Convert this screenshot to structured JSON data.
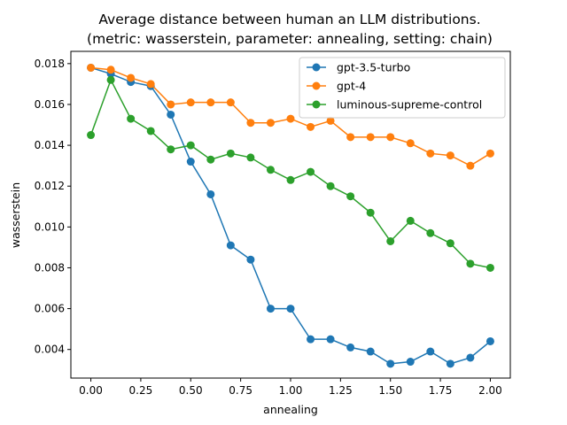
{
  "chart_data": {
    "type": "line",
    "title": "Average distance between human an LLM distributions.",
    "subtitle": "(metric: wasserstein, parameter: annealing, setting: chain)",
    "xlabel": "annealing",
    "ylabel": "wasserstein",
    "xlim": [
      -0.1,
      2.1
    ],
    "ylim": [
      0.0026,
      0.0186
    ],
    "xticks": [
      0.0,
      0.25,
      0.5,
      0.75,
      1.0,
      1.25,
      1.5,
      1.75,
      2.0
    ],
    "xtick_labels": [
      "0.00",
      "0.25",
      "0.50",
      "0.75",
      "1.00",
      "1.25",
      "1.50",
      "1.75",
      "2.00"
    ],
    "yticks": [
      0.004,
      0.006,
      0.008,
      0.01,
      0.012,
      0.014,
      0.016,
      0.018
    ],
    "ytick_labels": [
      "0.004",
      "0.006",
      "0.008",
      "0.010",
      "0.012",
      "0.014",
      "0.016",
      "0.018"
    ],
    "grid": false,
    "legend_position": "top-right",
    "x": [
      0.0,
      0.1,
      0.2,
      0.3,
      0.4,
      0.5,
      0.6,
      0.7,
      0.8,
      0.9,
      1.0,
      1.1,
      1.2,
      1.3,
      1.4,
      1.5,
      1.6,
      1.7,
      1.8,
      1.9,
      2.0
    ],
    "series": [
      {
        "name": "gpt-3.5-turbo",
        "color": "#1f77b4",
        "values": [
          0.0178,
          0.0175,
          0.0171,
          0.0169,
          0.0155,
          0.0132,
          0.0116,
          0.0091,
          0.0084,
          0.006,
          0.006,
          0.0045,
          0.0045,
          0.0041,
          0.0039,
          0.0033,
          0.0034,
          0.0039,
          0.0033,
          0.0036,
          0.0044
        ]
      },
      {
        "name": "gpt-4",
        "color": "#ff7f0e",
        "values": [
          0.0178,
          0.0177,
          0.0173,
          0.017,
          0.016,
          0.0161,
          0.0161,
          0.0161,
          0.0151,
          0.0151,
          0.0153,
          0.0149,
          0.0152,
          0.0144,
          0.0144,
          0.0144,
          0.0141,
          0.0136,
          0.0135,
          0.013,
          0.0136
        ]
      },
      {
        "name": "luminous-supreme-control",
        "color": "#2ca02c",
        "values": [
          0.0145,
          0.0172,
          0.0153,
          0.0147,
          0.0138,
          0.014,
          0.0133,
          0.0136,
          0.0134,
          0.0128,
          0.0123,
          0.0127,
          0.012,
          0.0115,
          0.0107,
          0.0093,
          0.0103,
          0.0097,
          0.0092,
          0.0082,
          0.008
        ]
      }
    ]
  }
}
